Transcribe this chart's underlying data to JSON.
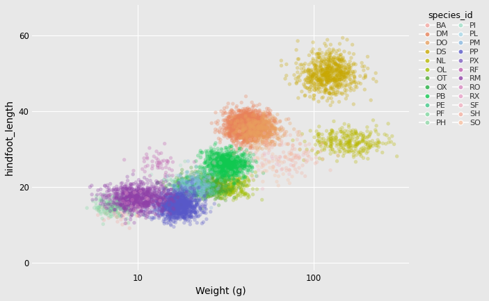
{
  "title": "species_id",
  "xlabel": "Weight (g)",
  "ylabel": "hindfoot_length",
  "background_color": "#e8e8e8",
  "grid_color": "#ffffff",
  "species": {
    "BA": {
      "color": "#F4A6A0",
      "weight_mean": 8,
      "weight_std": 1.2,
      "hf_mean": 13,
      "hf_std": 1.5,
      "n": 40
    },
    "DM": {
      "color": "#E8825A",
      "weight_mean": 42,
      "weight_std": 6,
      "hf_mean": 36,
      "hf_std": 2.0,
      "n": 1800
    },
    "DO": {
      "color": "#E8A060",
      "weight_mean": 50,
      "weight_std": 8,
      "hf_mean": 35,
      "hf_std": 2.0,
      "n": 400
    },
    "DS": {
      "color": "#C8A800",
      "weight_mean": 125,
      "weight_std": 25,
      "hf_mean": 50,
      "hf_std": 3.0,
      "n": 700
    },
    "NL": {
      "color": "#B8B800",
      "weight_mean": 160,
      "weight_std": 40,
      "hf_mean": 32,
      "hf_std": 2.0,
      "n": 300
    },
    "OL": {
      "color": "#A0C000",
      "weight_mean": 33,
      "weight_std": 5,
      "hf_mean": 20,
      "hf_std": 1.5,
      "n": 300
    },
    "OT": {
      "color": "#50A830",
      "weight_mean": 24,
      "weight_std": 4,
      "hf_mean": 20,
      "hf_std": 1.5,
      "n": 600
    },
    "OX": {
      "color": "#20B040",
      "weight_mean": 24,
      "weight_std": 3,
      "hf_mean": 19,
      "hf_std": 1.5,
      "n": 20
    },
    "PB": {
      "color": "#10C850",
      "weight_mean": 32,
      "weight_std": 5,
      "hf_mean": 26,
      "hf_std": 2.0,
      "n": 800
    },
    "PE": {
      "color": "#40C888",
      "weight_mean": 21,
      "weight_std": 3,
      "hf_mean": 20,
      "hf_std": 1.5,
      "n": 300
    },
    "PF": {
      "color": "#80D8A0",
      "weight_mean": 7.5,
      "weight_std": 1.0,
      "hf_mean": 15,
      "hf_std": 1.5,
      "n": 200
    },
    "PH": {
      "color": "#90D8A8",
      "weight_mean": 27,
      "weight_std": 4,
      "hf_mean": 26,
      "hf_std": 2.0,
      "n": 20
    },
    "PI": {
      "color": "#A0E0C8",
      "weight_mean": 17,
      "weight_std": 2,
      "hf_mean": 22,
      "hf_std": 2.0,
      "n": 8
    },
    "PL": {
      "color": "#A8D8E8",
      "weight_mean": 19,
      "weight_std": 2,
      "hf_mean": 20,
      "hf_std": 1.5,
      "n": 15
    },
    "PM": {
      "color": "#88B8E0",
      "weight_mean": 21,
      "weight_std": 3,
      "hf_mean": 20,
      "hf_std": 2.0,
      "n": 200
    },
    "PP": {
      "color": "#5858C8",
      "weight_mean": 17,
      "weight_std": 2.5,
      "hf_mean": 15,
      "hf_std": 2.0,
      "n": 1000
    },
    "PX": {
      "color": "#8060C0",
      "weight_mean": 19,
      "weight_std": 2,
      "hf_mean": 19,
      "hf_std": 2.0,
      "n": 8
    },
    "RF": {
      "color": "#C060B0",
      "weight_mean": 13,
      "weight_std": 2,
      "hf_mean": 26,
      "hf_std": 2.0,
      "n": 50
    },
    "RM": {
      "color": "#9040A8",
      "weight_mean": 10,
      "weight_std": 2,
      "hf_mean": 17,
      "hf_std": 2.0,
      "n": 800
    },
    "RO": {
      "color": "#D888C0",
      "weight_mean": 9,
      "weight_std": 1.5,
      "hf_mean": 15,
      "hf_std": 2.0,
      "n": 10
    },
    "RX": {
      "color": "#E8A0C8",
      "weight_mean": 11,
      "weight_std": 1.5,
      "hf_mean": 17,
      "hf_std": 2.0,
      "n": 8
    },
    "SF": {
      "color": "#F0B0C0",
      "weight_mean": 58,
      "weight_std": 12,
      "hf_mean": 26,
      "hf_std": 3.0,
      "n": 30
    },
    "SH": {
      "color": "#F4B0A0",
      "weight_mean": 75,
      "weight_std": 18,
      "hf_mean": 29,
      "hf_std": 3.0,
      "n": 100
    },
    "SO": {
      "color": "#F8C0A0",
      "weight_mean": 55,
      "weight_std": 10,
      "hf_mean": 26,
      "hf_std": 3.0,
      "n": 40
    }
  },
  "alpha": 0.3,
  "marker_size": 15,
  "xlim": [
    2.5,
    350
  ],
  "ylim": [
    -2,
    68
  ],
  "yticks": [
    0,
    20,
    40,
    60
  ],
  "legend_fontsize": 8,
  "axis_fontsize": 10,
  "tick_fontsize": 8.5,
  "figsize": [
    7.03,
    4.33
  ],
  "dpi": 100
}
